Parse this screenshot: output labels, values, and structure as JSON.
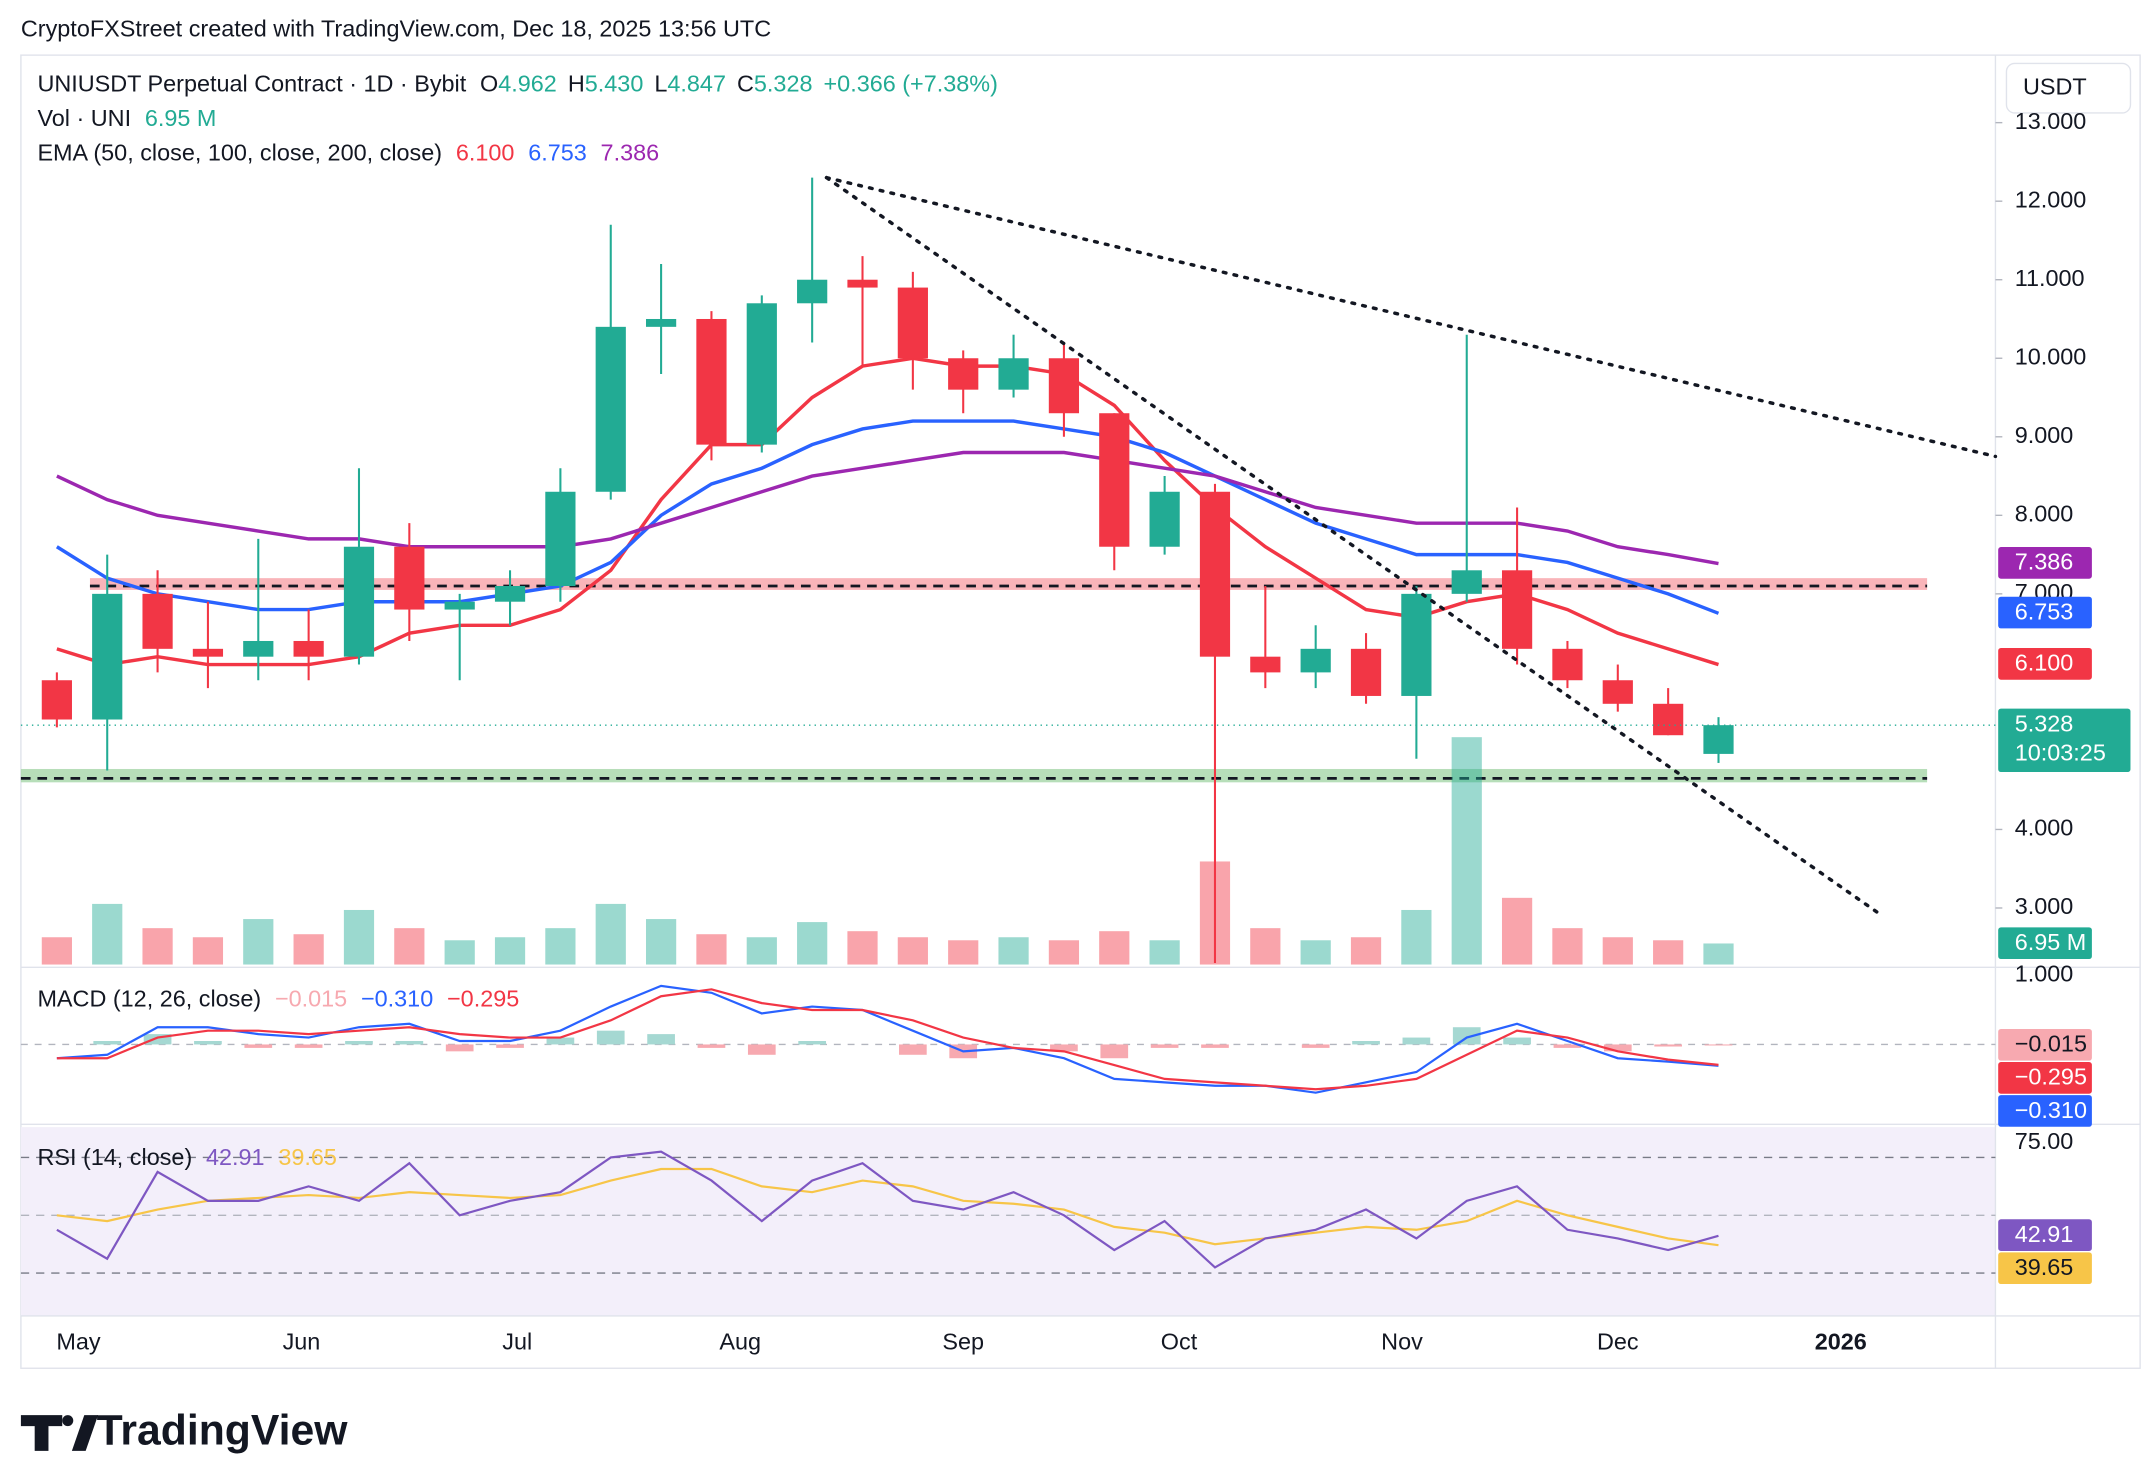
{
  "header": {
    "credit": "CryptoFXStreet created with TradingView.com, Dec 18, 2025 13:56 UTC"
  },
  "footer": {
    "brand": "TradingView"
  },
  "chart_data": [
    {
      "type": "candlestick",
      "title": "UNIUSDT Perpetual Contract · 1D · Bybit",
      "currency": "USDT",
      "ohlc_letters": [
        "O",
        "H",
        "L",
        "C"
      ],
      "last_labels": [
        "4.962",
        "5.430",
        "4.847",
        "5.328"
      ],
      "change": "+0.366 (+7.38%)",
      "countdown": "10:03:25",
      "up_color": "#22ab94",
      "down_color": "#f23645",
      "x": [
        5,
        12,
        19,
        26,
        33,
        40,
        47,
        54,
        61,
        68,
        75,
        82,
        89,
        96,
        103,
        110,
        117,
        124,
        131,
        138,
        145,
        152,
        159,
        166,
        173,
        180,
        187,
        194,
        201,
        208,
        215,
        222,
        229,
        236
      ],
      "open": [
        5.9,
        5.4,
        7.0,
        6.3,
        6.2,
        6.4,
        6.2,
        7.6,
        6.8,
        6.9,
        7.1,
        8.3,
        10.4,
        10.5,
        8.9,
        10.7,
        11.0,
        10.9,
        10.0,
        9.6,
        10.0,
        9.3,
        7.6,
        8.3,
        6.2,
        6.0,
        6.3,
        5.7,
        7.0,
        7.3,
        6.3,
        5.9,
        5.6,
        4.962
      ],
      "high": [
        6.0,
        7.5,
        7.3,
        6.9,
        7.7,
        6.8,
        8.6,
        7.9,
        7.0,
        7.3,
        8.6,
        11.7,
        11.2,
        10.6,
        10.8,
        12.3,
        11.3,
        11.1,
        10.1,
        10.3,
        10.2,
        9.3,
        8.5,
        8.4,
        7.1,
        6.6,
        6.5,
        7.1,
        10.3,
        8.1,
        6.4,
        6.1,
        5.8,
        5.43
      ],
      "low": [
        5.3,
        4.75,
        6.0,
        5.8,
        5.9,
        5.9,
        6.1,
        6.4,
        5.9,
        6.6,
        6.9,
        8.2,
        9.8,
        8.7,
        8.8,
        10.2,
        9.9,
        9.6,
        9.3,
        9.5,
        9.0,
        7.3,
        7.5,
        2.3,
        5.8,
        5.8,
        5.6,
        4.9,
        6.9,
        6.1,
        5.8,
        5.5,
        5.2,
        4.847
      ],
      "close": [
        5.4,
        7.0,
        6.3,
        6.2,
        6.4,
        6.2,
        7.6,
        6.8,
        6.9,
        7.1,
        8.3,
        10.4,
        10.5,
        8.9,
        10.7,
        11.0,
        10.9,
        10.0,
        9.6,
        10.0,
        9.3,
        7.6,
        8.3,
        6.2,
        6.0,
        6.3,
        5.7,
        7.0,
        7.3,
        6.3,
        5.9,
        5.6,
        5.2,
        5.328
      ],
      "xlim": [
        0,
        274.5
      ],
      "ylim": [
        2.28,
        13.86
      ],
      "yticks": [
        {
          "value": 3,
          "label": "3.000"
        },
        {
          "value": 4,
          "label": "4.000"
        },
        {
          "value": 7,
          "label": "7.000"
        },
        {
          "value": 8,
          "label": "8.000"
        },
        {
          "value": 9,
          "label": "9.000"
        },
        {
          "value": 10,
          "label": "10.000"
        },
        {
          "value": 11,
          "label": "11.000"
        },
        {
          "value": 12,
          "label": "12.000"
        },
        {
          "value": 13,
          "label": "13.000"
        }
      ],
      "volume": {
        "label": "Vol · UNI",
        "last_label": "6.95 M",
        "axis": "y2",
        "values": [
          9,
          20,
          12,
          9,
          15,
          10,
          18,
          12,
          8,
          9,
          12,
          20,
          15,
          10,
          9,
          14,
          11,
          9,
          8,
          9,
          8,
          11,
          8,
          34,
          12,
          8,
          9,
          18,
          75,
          22,
          12,
          9,
          8,
          6.95
        ]
      },
      "y2lim": [
        0,
        300
      ],
      "ema_label": "EMA (50, close, 100, close, 200, close)",
      "series": [
        {
          "color": "#f23645",
          "last_label": "6.100",
          "values": [
            6.3,
            6.1,
            6.2,
            6.1,
            6.1,
            6.1,
            6.2,
            6.5,
            6.6,
            6.6,
            6.8,
            7.3,
            8.2,
            8.9,
            8.9,
            9.5,
            9.9,
            10.0,
            9.9,
            9.9,
            9.8,
            9.4,
            8.7,
            8.1,
            7.6,
            7.2,
            6.8,
            6.7,
            6.9,
            7.0,
            6.8,
            6.5,
            6.3,
            6.1
          ]
        },
        {
          "color": "#2962ff",
          "last_label": "6.753",
          "values": [
            7.6,
            7.2,
            7.0,
            6.9,
            6.8,
            6.8,
            6.9,
            6.9,
            6.9,
            7.0,
            7.1,
            7.4,
            8.0,
            8.4,
            8.6,
            8.9,
            9.1,
            9.2,
            9.2,
            9.2,
            9.1,
            9.0,
            8.8,
            8.5,
            8.2,
            7.9,
            7.7,
            7.5,
            7.5,
            7.5,
            7.4,
            7.2,
            7.0,
            6.753
          ]
        },
        {
          "color": "#9c27b0",
          "last_label": "7.386",
          "values": [
            8.5,
            8.2,
            8.0,
            7.9,
            7.8,
            7.7,
            7.7,
            7.6,
            7.6,
            7.6,
            7.6,
            7.7,
            7.9,
            8.1,
            8.3,
            8.5,
            8.6,
            8.7,
            8.8,
            8.8,
            8.8,
            8.7,
            8.6,
            8.5,
            8.3,
            8.1,
            8.0,
            7.9,
            7.9,
            7.9,
            7.8,
            7.6,
            7.5,
            7.386
          ]
        }
      ],
      "annotations": {
        "trendlines": [
          {
            "x": [
              112,
              274.5
            ],
            "y": [
              12.3,
              8.75
            ]
          },
          {
            "x": [
              112,
              258
            ],
            "y": [
              12.3,
              2.95
            ]
          }
        ],
        "zones": [
          {
            "x": [
              9.6,
              265
            ],
            "y": [
              7.05,
              7.2
            ],
            "line": 7.1,
            "color": "#f7a1a8"
          },
          {
            "x": [
              0,
              265
            ],
            "y": [
              4.6,
              4.77
            ],
            "line": 4.65,
            "color": "#a5d6a7"
          }
        ]
      }
    },
    {
      "type": "macd",
      "label": "MACD (12, 26, close)",
      "x": [
        5,
        12,
        19,
        26,
        33,
        40,
        47,
        54,
        61,
        68,
        75,
        82,
        89,
        96,
        103,
        110,
        117,
        124,
        131,
        138,
        145,
        152,
        159,
        166,
        173,
        180,
        187,
        194,
        201,
        208,
        215,
        222,
        229,
        236
      ],
      "xlim": [
        0,
        274.5
      ],
      "ylim": [
        -1.14,
        1.1
      ],
      "yticks": [
        {
          "value": 1,
          "label": "1.000"
        }
      ],
      "midline": 0,
      "histogram": {
        "last_label": "−0.015",
        "up_color": "#a5d8d2",
        "down_color": "#f7a9b0",
        "values": [
          0,
          0.05,
          0.15,
          0.05,
          -0.05,
          -0.05,
          0.05,
          0.05,
          -0.1,
          -0.05,
          0.1,
          0.2,
          0.15,
          -0.05,
          -0.15,
          0.05,
          0,
          -0.15,
          -0.2,
          0,
          -0.1,
          -0.2,
          -0.05,
          -0.05,
          0,
          -0.05,
          0.05,
          0.1,
          0.25,
          0.1,
          -0.05,
          -0.1,
          -0.03,
          -0.015
        ]
      },
      "series": [
        {
          "color": "#2962ff",
          "last_label": "−0.310",
          "values": [
            -0.2,
            -0.15,
            0.25,
            0.25,
            0.15,
            0.1,
            0.25,
            0.3,
            0.05,
            0.05,
            0.2,
            0.55,
            0.85,
            0.75,
            0.45,
            0.55,
            0.5,
            0.2,
            -0.1,
            -0.05,
            -0.2,
            -0.5,
            -0.55,
            -0.6,
            -0.6,
            -0.7,
            -0.55,
            -0.4,
            0.1,
            0.3,
            0.05,
            -0.2,
            -0.25,
            -0.31
          ]
        },
        {
          "color": "#f23645",
          "last_label": "−0.295",
          "values": [
            -0.2,
            -0.2,
            0.1,
            0.2,
            0.2,
            0.15,
            0.2,
            0.25,
            0.15,
            0.1,
            0.1,
            0.35,
            0.7,
            0.8,
            0.6,
            0.5,
            0.5,
            0.35,
            0.1,
            -0.05,
            -0.1,
            -0.3,
            -0.5,
            -0.55,
            -0.6,
            -0.65,
            -0.6,
            -0.5,
            -0.15,
            0.2,
            0.1,
            -0.1,
            -0.22,
            -0.295
          ]
        }
      ]
    },
    {
      "type": "rsi",
      "label": "RSI (14, close)",
      "x": [
        5,
        12,
        19,
        26,
        33,
        40,
        47,
        54,
        61,
        68,
        75,
        82,
        89,
        96,
        103,
        110,
        117,
        124,
        131,
        138,
        145,
        152,
        159,
        166,
        173,
        180,
        187,
        194,
        201,
        208,
        215,
        222,
        229,
        236
      ],
      "xlim": [
        0,
        274.5
      ],
      "ylim": [
        15.2,
        80.5
      ],
      "yticks": [
        {
          "value": 75,
          "label": "75.00"
        }
      ],
      "bands": [
        30,
        70
      ],
      "midline": 50,
      "xticks": [
        {
          "value": 8,
          "label": "May"
        },
        {
          "value": 39,
          "label": "Jun"
        },
        {
          "value": 69,
          "label": "Jul"
        },
        {
          "value": 100,
          "label": "Aug"
        },
        {
          "value": 131,
          "label": "Sep"
        },
        {
          "value": 161,
          "label": "Oct"
        },
        {
          "value": 192,
          "label": "Nov"
        },
        {
          "value": 222,
          "label": "Dec"
        },
        {
          "value": 253,
          "label": "2026"
        }
      ],
      "series": [
        {
          "color": "#7e57c2",
          "last_label": "42.91",
          "values": [
            45,
            35,
            65,
            55,
            55,
            60,
            55,
            68,
            50,
            55,
            58,
            70,
            72,
            62,
            48,
            62,
            68,
            55,
            52,
            58,
            50,
            38,
            48,
            32,
            42,
            45,
            52,
            42,
            55,
            60,
            45,
            42,
            38,
            42.91
          ]
        },
        {
          "color": "#f7c548",
          "last_label": "39.65",
          "values": [
            50,
            48,
            52,
            55,
            56,
            57,
            56,
            58,
            57,
            56,
            57,
            62,
            66,
            66,
            60,
            58,
            62,
            60,
            55,
            54,
            52,
            46,
            44,
            40,
            42,
            44,
            46,
            45,
            48,
            55,
            50,
            46,
            42,
            39.65
          ]
        }
      ]
    }
  ]
}
